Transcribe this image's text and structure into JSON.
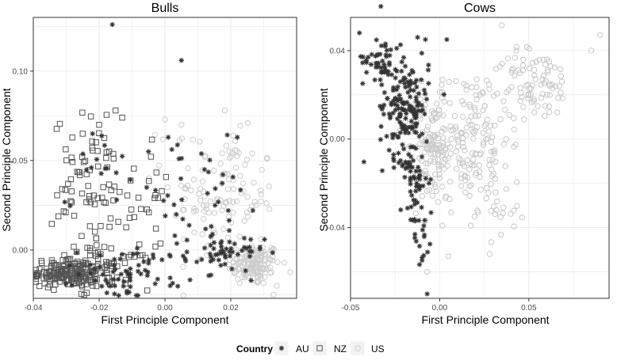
{
  "chart_data": [
    {
      "type": "scatter",
      "title": "Bulls",
      "xlabel": "First Principle Component",
      "ylabel": "Second Principle Component",
      "xlim": [
        -0.04,
        0.04
      ],
      "ylim": [
        -0.027,
        0.13
      ],
      "xticks": [
        -0.04,
        -0.02,
        0.0,
        0.02
      ],
      "xtick_labels": [
        "-0.04",
        "-0.02",
        "0.00",
        "0.02"
      ],
      "yticks": [
        0.0,
        0.05,
        0.1
      ],
      "ytick_labels": [
        "0.00",
        "0.05",
        "0.10"
      ],
      "grid": true,
      "series": [
        {
          "name": "AU",
          "marker": "asterisk",
          "color": "#333333",
          "clusters": [
            {
              "cx": -0.01,
              "cy": -0.013,
              "sx": 0.008,
              "sy": 0.007,
              "n": 70
            },
            {
              "cx": 0.018,
              "cy": -0.002,
              "sx": 0.006,
              "sy": 0.005,
              "n": 50
            },
            {
              "cx": 0.01,
              "cy": 0.025,
              "sx": 0.012,
              "sy": 0.018,
              "n": 40
            },
            {
              "cx": -0.02,
              "cy": 0.05,
              "sx": 0.005,
              "sy": 0.012,
              "n": 15
            }
          ],
          "points": [
            [
              -0.016,
              0.126
            ],
            [
              0.005,
              0.106
            ],
            [
              0.022,
              0.063
            ],
            [
              0.001,
              0.063
            ],
            [
              -0.022,
              0.065
            ],
            [
              0.012,
              0.045
            ],
            [
              -0.005,
              0.055
            ]
          ]
        },
        {
          "name": "NZ",
          "marker": "square",
          "color": "#555555",
          "clusters": [
            {
              "cx": -0.03,
              "cy": -0.013,
              "sx": 0.005,
              "sy": 0.004,
              "n": 160
            },
            {
              "cx": -0.018,
              "cy": -0.01,
              "sx": 0.007,
              "sy": 0.006,
              "n": 60
            },
            {
              "cx": -0.022,
              "cy": 0.035,
              "sx": 0.006,
              "sy": 0.02,
              "n": 80
            },
            {
              "cx": -0.008,
              "cy": 0.03,
              "sx": 0.005,
              "sy": 0.015,
              "n": 20
            }
          ],
          "points": [
            [
              -0.015,
              0.078
            ],
            [
              -0.013,
              0.074
            ],
            [
              -0.02,
              0.07
            ],
            [
              -0.025,
              0.065
            ]
          ]
        },
        {
          "name": "US",
          "marker": "circle",
          "color": "#cccccc",
          "clusters": [
            {
              "cx": 0.027,
              "cy": -0.008,
              "sx": 0.004,
              "sy": 0.006,
              "n": 140
            },
            {
              "cx": 0.018,
              "cy": 0.03,
              "sx": 0.008,
              "sy": 0.017,
              "n": 100
            },
            {
              "cx": 0.01,
              "cy": 0.05,
              "sx": 0.006,
              "sy": 0.012,
              "n": 20
            }
          ],
          "points": [
            [
              0.033,
              -0.025
            ],
            [
              0.034,
              -0.02
            ],
            [
              0.0,
              0.073
            ],
            [
              0.005,
              0.07
            ]
          ]
        }
      ]
    },
    {
      "type": "scatter",
      "title": "Cows",
      "xlabel": "First Principle Component",
      "ylabel": "Second Principle Component",
      "xlim": [
        -0.05,
        0.095
      ],
      "ylim": [
        -0.072,
        0.055
      ],
      "xticks": [
        -0.05,
        0.0,
        0.05
      ],
      "xtick_labels": [
        "-0.05",
        "0.00",
        "0.05"
      ],
      "yticks": [
        -0.04,
        0.0,
        0.04
      ],
      "ytick_labels": [
        "-0.04",
        "0.00",
        "0.04"
      ],
      "grid": true,
      "series": [
        {
          "name": "AU",
          "marker": "asterisk",
          "color": "#333333",
          "clusters": [
            {
              "cx": -0.033,
              "cy": 0.037,
              "sx": 0.005,
              "sy": 0.005,
              "n": 40
            },
            {
              "cx": -0.02,
              "cy": 0.015,
              "sx": 0.007,
              "sy": 0.012,
              "n": 160
            },
            {
              "cx": -0.014,
              "cy": -0.018,
              "sx": 0.004,
              "sy": 0.012,
              "n": 60
            },
            {
              "cx": -0.01,
              "cy": -0.045,
              "sx": 0.003,
              "sy": 0.005,
              "n": 15
            }
          ],
          "points": [
            [
              -0.033,
              0.06
            ],
            [
              -0.007,
              -0.07
            ],
            [
              -0.008,
              0.045
            ],
            [
              0.004,
              0.045
            ],
            [
              -0.045,
              0.048
            ]
          ]
        },
        {
          "name": "US",
          "marker": "circle",
          "color": "#c8c8c8",
          "clusters": [
            {
              "cx": -0.004,
              "cy": -0.005,
              "sx": 0.006,
              "sy": 0.013,
              "n": 110
            },
            {
              "cx": 0.015,
              "cy": 0.0,
              "sx": 0.012,
              "sy": 0.015,
              "n": 130
            },
            {
              "cx": 0.055,
              "cy": 0.025,
              "sx": 0.01,
              "sy": 0.008,
              "n": 70
            },
            {
              "cx": 0.03,
              "cy": -0.025,
              "sx": 0.01,
              "sy": 0.012,
              "n": 40
            },
            {
              "cx": 0.035,
              "cy": 0.02,
              "sx": 0.01,
              "sy": 0.01,
              "n": 30
            }
          ],
          "points": [
            [
              0.09,
              0.047
            ],
            [
              0.085,
              0.04
            ],
            [
              0.005,
              -0.053
            ],
            [
              -0.007,
              -0.06
            ],
            [
              0.028,
              -0.052
            ],
            [
              0.043,
              0.04
            ]
          ]
        }
      ]
    }
  ],
  "legend": {
    "title": "Country",
    "position": "bottom",
    "items": [
      {
        "label": "AU",
        "marker": "asterisk",
        "color": "#333333"
      },
      {
        "label": "NZ",
        "marker": "square",
        "color": "#555555"
      },
      {
        "label": "US",
        "marker": "circle",
        "color": "#cccccc"
      }
    ]
  },
  "colors": {
    "grid": "#ebebeb",
    "panel_border": "#333333",
    "tick_label": "#4d4d4d",
    "text": "#000000"
  }
}
